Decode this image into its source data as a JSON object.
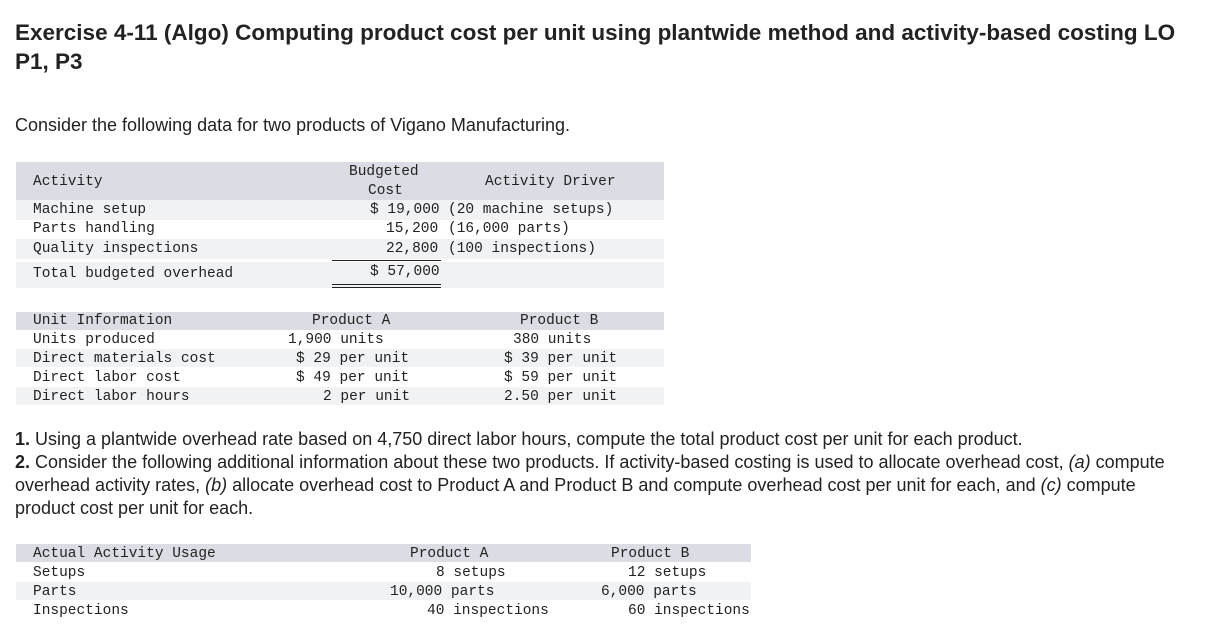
{
  "title": "Exercise 4-11 (Algo) Computing product cost per unit using plantwide method and activity-based costing LO P1, P3",
  "intro": "Consider the following data for two products of Vigano Manufacturing.",
  "overhead_table": {
    "headers": {
      "activity": "Activity",
      "budgeted_cost_1": "Budgeted",
      "budgeted_cost_2": "Cost",
      "driver": "Activity Driver"
    },
    "rows": [
      {
        "activity": "Machine setup",
        "cost": "$ 19,000",
        "driver": "(20 machine setups)"
      },
      {
        "activity": "Parts handling",
        "cost": "15,200",
        "driver": "(16,000 parts)"
      },
      {
        "activity": "Quality inspections",
        "cost": "22,800",
        "driver": "(100 inspections)"
      }
    ],
    "total": {
      "label": "Total budgeted overhead",
      "cost": "$ 57,000"
    }
  },
  "unit_table": {
    "headers": {
      "label": "Unit Information",
      "a": "Product A",
      "b": "Product B"
    },
    "rows": [
      {
        "label": "Units produced",
        "a": "1,900 units",
        "b": "380 units"
      },
      {
        "label": "Direct materials cost",
        "a": "$ 29 per unit",
        "b": "$ 39 per unit"
      },
      {
        "label": "Direct labor cost",
        "a": "$ 49 per unit",
        "b": "$ 59 per unit"
      },
      {
        "label": "Direct labor hours",
        "a": "2 per unit",
        "b": "2.50 per unit"
      }
    ]
  },
  "questions": {
    "q1_num": "1.",
    "q1_text": " Using a plantwide overhead rate based on 4,750 direct labor hours, compute the total product cost per unit for each product.",
    "q2_num": "2.",
    "q2_text_a": " Consider the following additional information about these two products. If activity-based costing is used to allocate overhead cost, ",
    "q2_a": "(a)",
    "q2_text_b": " compute overhead activity rates, ",
    "q2_b": "(b)",
    "q2_text_c": " allocate overhead cost to Product A and Product B and compute overhead cost per unit for each, and ",
    "q2_c": "(c)",
    "q2_text_d": " compute product cost per unit for each."
  },
  "usage_table": {
    "headers": {
      "label": "Actual Activity Usage",
      "a": "Product A",
      "b": "Product B"
    },
    "rows": [
      {
        "label": "Setups",
        "a": "8 setups",
        "b": "12 setups"
      },
      {
        "label": "Parts",
        "a": "10,000 parts",
        "b": "6,000 parts"
      },
      {
        "label": "Inspections",
        "a": "40 inspections",
        "b": "60 inspections"
      }
    ]
  }
}
